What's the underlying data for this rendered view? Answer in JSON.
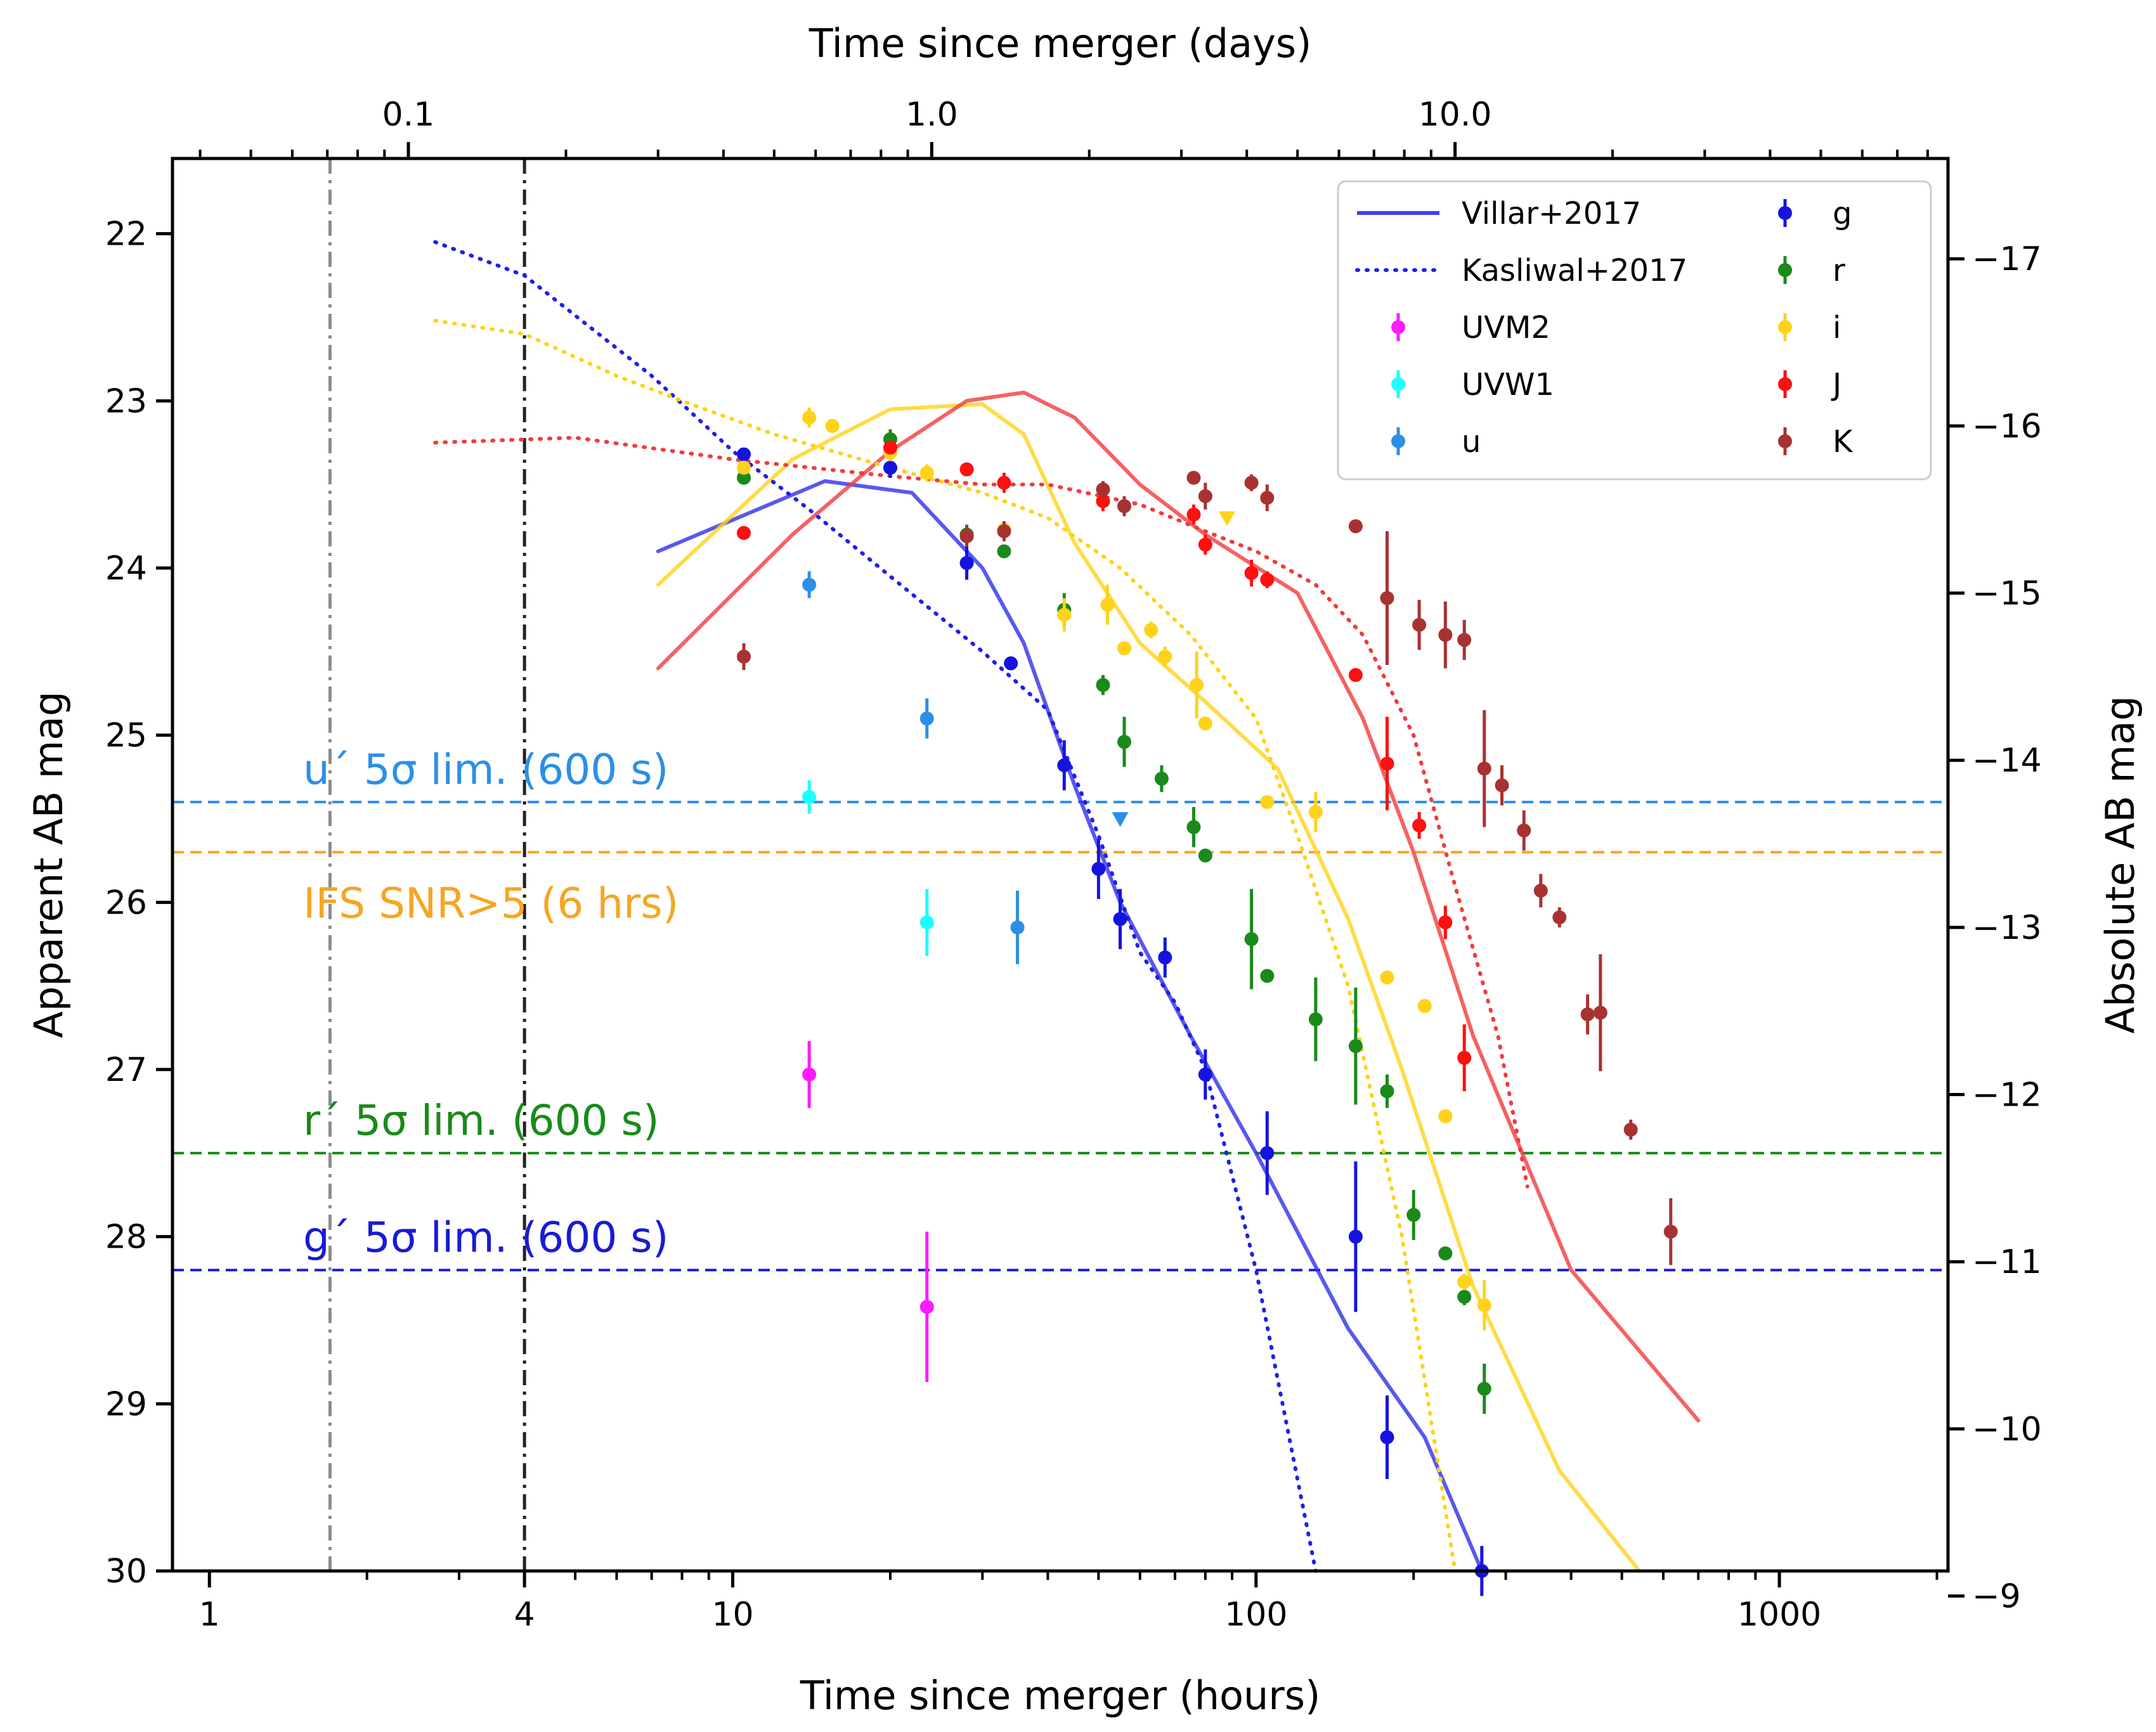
{
  "chart_data": {
    "type": "scatter",
    "xlabel_bottom": "Time since merger (hours)",
    "xlabel_top": "Time since merger (days)",
    "ylabel_left": "Apparent AB mag",
    "ylabel_right": "Absolute AB mag",
    "xlim_hours": [
      0.85,
      2100
    ],
    "ylim_apparent": [
      30,
      21.55
    ],
    "abs_offset": 39.15,
    "x_ticks_bottom": [
      {
        "value": 1,
        "label": "1"
      },
      {
        "value": 4,
        "label": "4"
      },
      {
        "value": 10,
        "label": "10"
      },
      {
        "value": 100,
        "label": "100"
      },
      {
        "value": 1000,
        "label": "1000"
      }
    ],
    "x_ticks_top_days": [
      {
        "value": 0.1,
        "label": "0.1"
      },
      {
        "value": 1.0,
        "label": "1.0"
      },
      {
        "value": 10.0,
        "label": "10.0"
      }
    ],
    "y_ticks_left": [
      {
        "value": 22,
        "label": "22"
      },
      {
        "value": 23,
        "label": "23"
      },
      {
        "value": 24,
        "label": "24"
      },
      {
        "value": 25,
        "label": "25"
      },
      {
        "value": 26,
        "label": "26"
      },
      {
        "value": 27,
        "label": "27"
      },
      {
        "value": 28,
        "label": "28"
      },
      {
        "value": 29,
        "label": "29"
      },
      {
        "value": 30,
        "label": "30"
      }
    ],
    "y_ticks_right": [
      {
        "value": -17,
        "label": "−17"
      },
      {
        "value": -16,
        "label": "−16"
      },
      {
        "value": -15,
        "label": "−15"
      },
      {
        "value": -14,
        "label": "−14"
      },
      {
        "value": -13,
        "label": "−13"
      },
      {
        "value": -12,
        "label": "−12"
      },
      {
        "value": -11,
        "label": "−11"
      },
      {
        "value": -10,
        "label": "−10"
      },
      {
        "value": -9,
        "label": "−9"
      }
    ],
    "vlines": [
      {
        "x": 1.7,
        "color": "#8c8c8c"
      },
      {
        "x": 4,
        "color": "#222222"
      }
    ],
    "hlines": [
      {
        "y": 25.4,
        "color": "#2b8fe8",
        "label": "u´ 5σ lim. (600 s)",
        "label_y": 25.2
      },
      {
        "y": 25.7,
        "color": "#f5a623",
        "label": "IFS SNR>5 (6 hrs)",
        "label_y": 26.0
      },
      {
        "y": 27.5,
        "color": "#1a8a1a",
        "label": "r´ 5σ lim. (600 s)",
        "label_y": 27.3
      },
      {
        "y": 28.2,
        "color": "#1a1ad6",
        "label": "g´ 5σ lim. (600 s)",
        "label_y": 28.0
      }
    ],
    "models": [
      {
        "name": "villar_g",
        "style": "solid",
        "color": "#2f2fe8",
        "x": [
          7.2,
          15,
          22,
          30,
          36,
          45,
          55,
          75,
          100,
          150,
          210,
          270
        ],
        "y": [
          23.9,
          23.48,
          23.55,
          24.0,
          24.45,
          25.3,
          26.0,
          26.8,
          27.5,
          28.55,
          29.2,
          30.0
        ]
      },
      {
        "name": "villar_i",
        "style": "solid",
        "color": "#ffd21a",
        "x": [
          7.2,
          13,
          20,
          30,
          36,
          45,
          60,
          80,
          110,
          150,
          190,
          260,
          380,
          540
        ],
        "y": [
          24.1,
          23.35,
          23.05,
          23.02,
          23.2,
          23.85,
          24.45,
          24.8,
          25.2,
          26.1,
          27.0,
          28.3,
          29.4,
          30.0
        ]
      },
      {
        "name": "villar_J",
        "style": "solid",
        "color": "#f23b3b",
        "x": [
          7.2,
          13,
          20,
          28,
          36,
          45,
          60,
          80,
          120,
          160,
          200,
          260,
          400,
          700
        ],
        "y": [
          24.6,
          23.8,
          23.3,
          23.0,
          22.95,
          23.1,
          23.5,
          23.8,
          24.15,
          24.9,
          25.7,
          26.8,
          28.2,
          29.1
        ]
      },
      {
        "name": "kasliwal_g",
        "style": "dotted",
        "color": "#2020e8",
        "x": [
          2.7,
          4,
          7,
          10,
          14,
          20,
          30,
          40,
          50,
          60,
          70,
          80,
          100,
          130
        ],
        "y": [
          22.05,
          22.25,
          22.85,
          23.3,
          23.65,
          24.05,
          24.5,
          24.85,
          25.6,
          26.3,
          26.6,
          27.0,
          28.2,
          30.0
        ]
      },
      {
        "name": "kasliwal_i",
        "style": "dotted",
        "color": "#ffd21a",
        "x": [
          2.7,
          4,
          6,
          8,
          12,
          20,
          30,
          40,
          55,
          75,
          100,
          120,
          150,
          190,
          240
        ],
        "y": [
          22.52,
          22.6,
          22.85,
          23.0,
          23.2,
          23.4,
          23.55,
          23.7,
          24.0,
          24.4,
          24.9,
          25.6,
          26.5,
          28.0,
          30.0
        ]
      },
      {
        "name": "kasliwal_J",
        "style": "dotted",
        "color": "#f23b3b",
        "x": [
          2.7,
          5,
          10,
          20,
          30,
          40,
          60,
          80,
          100,
          130,
          160,
          200,
          240,
          290,
          330
        ],
        "y": [
          23.25,
          23.22,
          23.35,
          23.45,
          23.5,
          23.5,
          23.62,
          23.78,
          23.9,
          24.1,
          24.4,
          25.0,
          25.9,
          26.8,
          27.7
        ]
      }
    ],
    "series": [
      {
        "name": "UVM2",
        "color": "#ff1aff",
        "points": [
          [
            14,
            27.03,
            0.2
          ],
          [
            23.5,
            28.42,
            0.45
          ]
        ]
      },
      {
        "name": "UVW1",
        "color": "#1affff",
        "points": [
          [
            14,
            25.37,
            0.1
          ],
          [
            23.5,
            26.12,
            0.2
          ]
        ]
      },
      {
        "name": "u",
        "color": "#2b8fe8",
        "points": [
          [
            14,
            24.1,
            0.08
          ],
          [
            23.5,
            24.9,
            0.12
          ],
          [
            35,
            26.15,
            0.22
          ],
          [
            55,
            25.5,
            0,
            "down"
          ]
        ]
      },
      {
        "name": "g",
        "color": "#1414e0",
        "points": [
          [
            10.5,
            23.32,
            0.04
          ],
          [
            20,
            23.4,
            0.06
          ],
          [
            28,
            23.97,
            0.1
          ],
          [
            34,
            24.57,
            0.04
          ],
          [
            43,
            25.18,
            0.15
          ],
          [
            50,
            25.8,
            0.18
          ],
          [
            55,
            26.1,
            0.18
          ],
          [
            67,
            26.33,
            0.12
          ],
          [
            80,
            27.03,
            0.15
          ],
          [
            105,
            27.5,
            0.25
          ],
          [
            155,
            28.0,
            0.45
          ],
          [
            178,
            29.2,
            0.25
          ],
          [
            270,
            30.0,
            0.15
          ]
        ]
      },
      {
        "name": "r",
        "color": "#1a8a1a",
        "points": [
          [
            10.5,
            23.46,
            0.04
          ],
          [
            20,
            23.23,
            0.06
          ],
          [
            28,
            23.8,
            0.06
          ],
          [
            33,
            23.9,
            0.04
          ],
          [
            43,
            24.25,
            0.1
          ],
          [
            51,
            24.7,
            0.06
          ],
          [
            56,
            25.04,
            0.15
          ],
          [
            66,
            25.26,
            0.08
          ],
          [
            76,
            25.55,
            0.12
          ],
          [
            80,
            25.72,
            0.04
          ],
          [
            98,
            26.22,
            0.3
          ],
          [
            105,
            26.44,
            0.04
          ],
          [
            130,
            26.7,
            0.25
          ],
          [
            155,
            26.86,
            0.35
          ],
          [
            178,
            27.13,
            0.1
          ],
          [
            200,
            27.87,
            0.15
          ],
          [
            230,
            28.1,
            0.04
          ],
          [
            250,
            28.36,
            0.05
          ],
          [
            273,
            28.91,
            0.15
          ]
        ]
      },
      {
        "name": "i",
        "color": "#ffd21a",
        "points": [
          [
            10.5,
            23.4,
            0.04
          ],
          [
            14,
            23.1,
            0.06
          ],
          [
            15.5,
            23.15,
            0.04
          ],
          [
            20,
            23.31,
            0.05
          ],
          [
            23.5,
            23.43,
            0.05
          ],
          [
            33,
            23.77,
            0.04
          ],
          [
            43,
            24.28,
            0.1
          ],
          [
            52,
            24.22,
            0.12
          ],
          [
            56,
            24.48,
            0.04
          ],
          [
            63,
            24.37,
            0.05
          ],
          [
            67,
            24.53,
            0.06
          ],
          [
            77,
            24.7,
            0.2
          ],
          [
            80,
            24.93,
            0.04
          ],
          [
            105,
            25.4,
            0.04
          ],
          [
            130,
            25.46,
            0.12
          ],
          [
            178,
            26.45,
            0.04
          ],
          [
            210,
            26.62,
            0.04
          ],
          [
            230,
            27.28,
            0.04
          ],
          [
            250,
            28.27,
            0.05
          ],
          [
            273,
            28.41,
            0.15
          ],
          [
            88,
            23.7,
            0,
            "down"
          ]
        ]
      },
      {
        "name": "J",
        "color": "#ff0f0f",
        "points": [
          [
            10.5,
            23.79,
            0.04
          ],
          [
            20,
            23.28,
            0.04
          ],
          [
            28,
            23.41,
            0.04
          ],
          [
            33,
            23.49,
            0.06
          ],
          [
            51,
            23.6,
            0.06
          ],
          [
            76,
            23.68,
            0.06
          ],
          [
            80,
            23.86,
            0.06
          ],
          [
            98,
            24.03,
            0.08
          ],
          [
            105,
            24.07,
            0.05
          ],
          [
            155,
            24.64,
            0.04
          ],
          [
            178,
            25.17,
            0.28
          ],
          [
            205,
            25.54,
            0.08
          ],
          [
            230,
            26.12,
            0.1
          ],
          [
            250,
            26.93,
            0.2
          ]
        ]
      },
      {
        "name": "K",
        "color": "#a83232",
        "points": [
          [
            10.5,
            24.53,
            0.08
          ],
          [
            28,
            23.81,
            0.06
          ],
          [
            33,
            23.78,
            0.06
          ],
          [
            51,
            23.53,
            0.05
          ],
          [
            56,
            23.63,
            0.06
          ],
          [
            76,
            23.46,
            0.04
          ],
          [
            80,
            23.57,
            0.08
          ],
          [
            98,
            23.49,
            0.05
          ],
          [
            105,
            23.58,
            0.08
          ],
          [
            155,
            23.75,
            0.04
          ],
          [
            178,
            24.18,
            0.4
          ],
          [
            205,
            24.34,
            0.15
          ],
          [
            230,
            24.4,
            0.2
          ],
          [
            250,
            24.43,
            0.12
          ],
          [
            273,
            25.2,
            0.35
          ],
          [
            295,
            25.3,
            0.12
          ],
          [
            325,
            25.57,
            0.12
          ],
          [
            350,
            25.93,
            0.1
          ],
          [
            380,
            26.09,
            0.06
          ],
          [
            430,
            26.67,
            0.12
          ],
          [
            455,
            26.66,
            0.35
          ],
          [
            520,
            27.36,
            0.06
          ],
          [
            620,
            27.97,
            0.2
          ]
        ]
      }
    ],
    "legend": [
      {
        "label": "Villar+2017",
        "kind": "line",
        "color": "#4040ee",
        "col": 0,
        "row": 0
      },
      {
        "label": "Kasliwal+2017",
        "kind": "dotted",
        "color": "#2020e8",
        "col": 0,
        "row": 1
      },
      {
        "label": "UVM2",
        "kind": "point",
        "color": "#ff1aff",
        "col": 0,
        "row": 2
      },
      {
        "label": "UVW1",
        "kind": "point",
        "color": "#1affff",
        "col": 0,
        "row": 3
      },
      {
        "label": "u",
        "kind": "point",
        "color": "#2b8fe8",
        "col": 0,
        "row": 4
      },
      {
        "label": "g",
        "kind": "point",
        "color": "#1414e0",
        "col": 1,
        "row": 0
      },
      {
        "label": "r",
        "kind": "point",
        "color": "#1a8a1a",
        "col": 1,
        "row": 1
      },
      {
        "label": "i",
        "kind": "point",
        "color": "#ffd21a",
        "col": 1,
        "row": 2
      },
      {
        "label": "J",
        "kind": "point",
        "color": "#ff0f0f",
        "col": 1,
        "row": 3
      },
      {
        "label": "K",
        "kind": "point",
        "color": "#a83232",
        "col": 1,
        "row": 4
      }
    ],
    "legend_position": "top-right"
  }
}
